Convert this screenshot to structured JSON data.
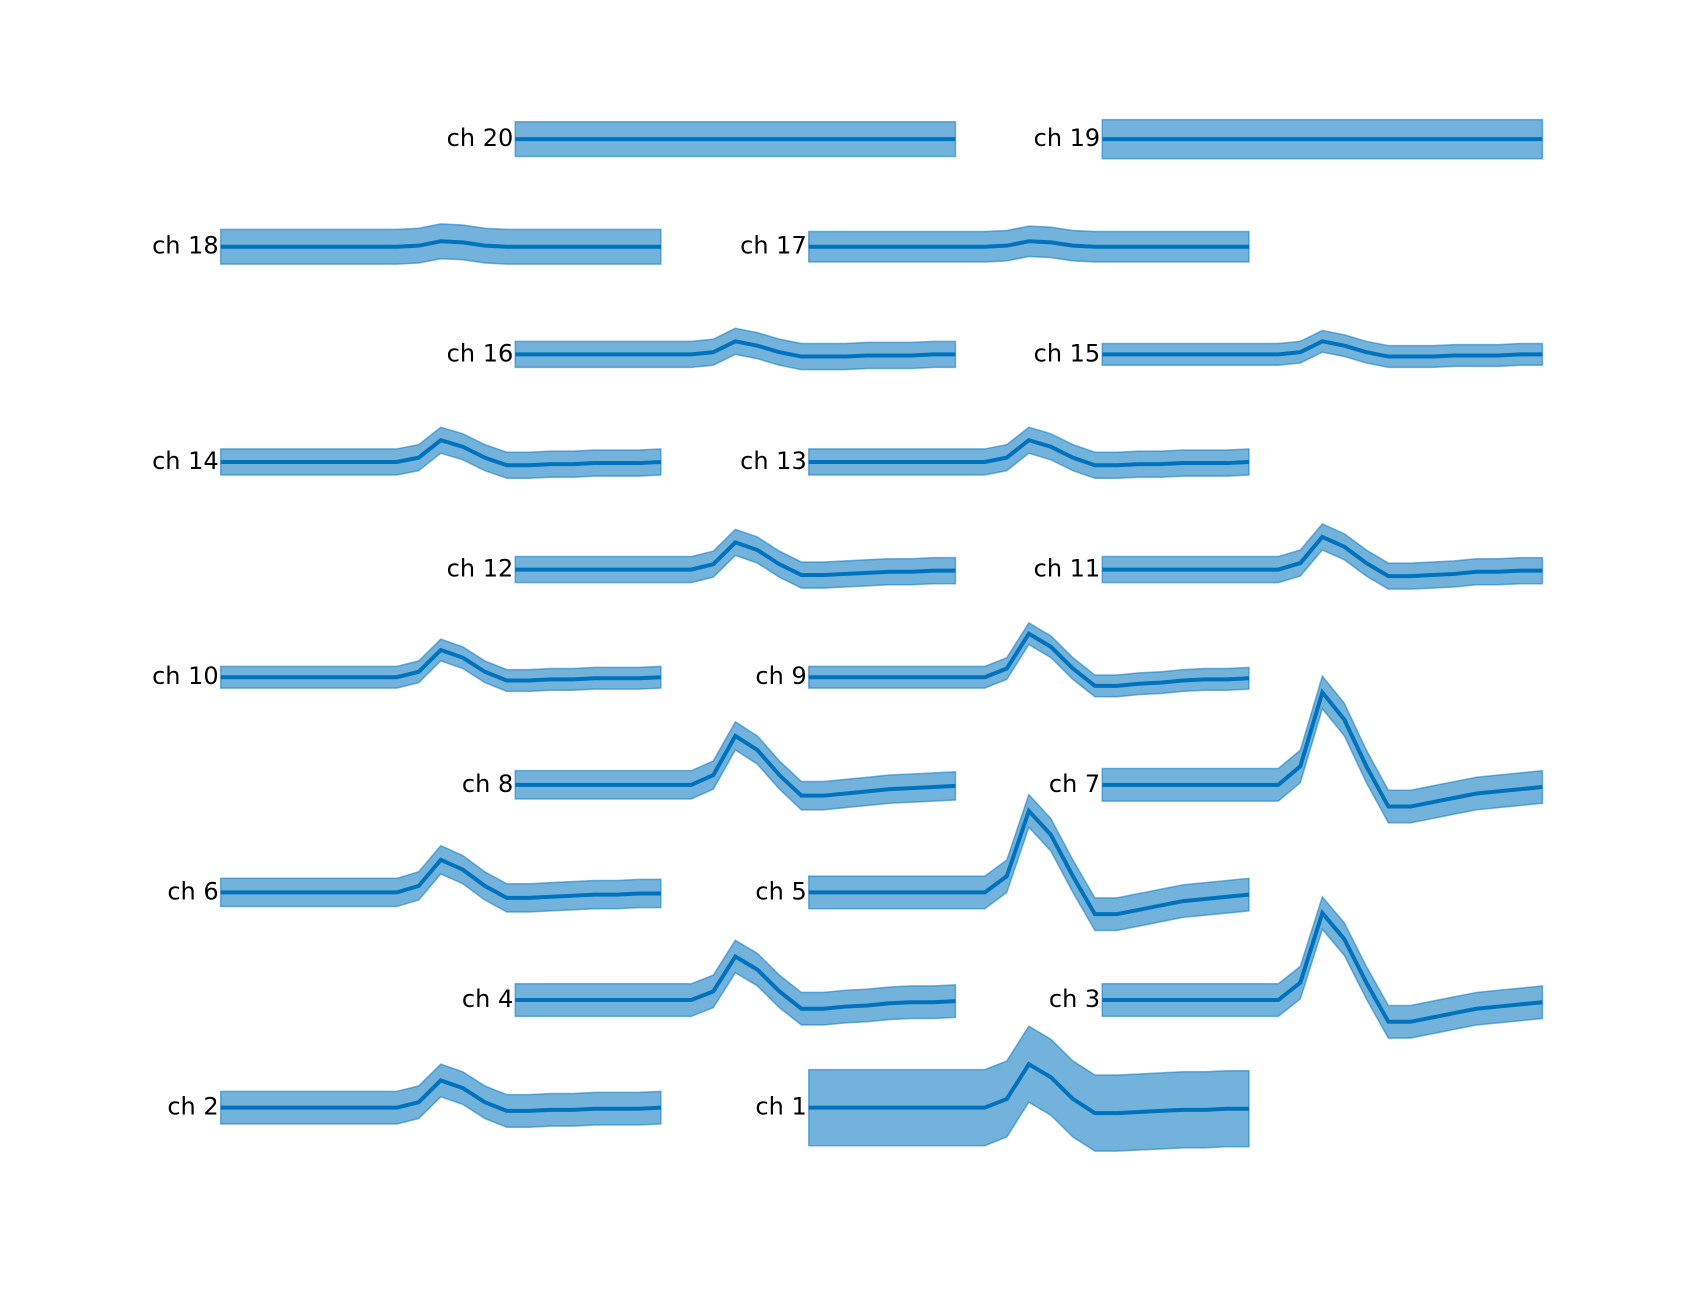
{
  "chart_data": {
    "type": "waveforms",
    "color": "#0072bd",
    "channels": [
      {
        "label": "ch 1",
        "mean": [
          0,
          0,
          0,
          0,
          0,
          0,
          0,
          0,
          0,
          8,
          40,
          28,
          8,
          -5,
          -5,
          -4,
          -3,
          -2,
          -2,
          -1,
          -1
        ],
        "spread": 35
      },
      {
        "label": "ch 2",
        "mean": [
          0,
          0,
          0,
          0,
          0,
          0,
          0,
          0,
          0,
          5,
          25,
          18,
          5,
          -3,
          -3,
          -2,
          -2,
          -1,
          -1,
          -1,
          0
        ],
        "spread": 15
      },
      {
        "label": "ch 3",
        "mean": [
          0,
          0,
          0,
          0,
          0,
          0,
          0,
          0,
          0,
          16,
          80,
          56,
          16,
          -20,
          -20,
          -16,
          -12,
          -8,
          -6,
          -4,
          -2
        ],
        "spread": 15
      },
      {
        "label": "ch 4",
        "mean": [
          0,
          0,
          0,
          0,
          0,
          0,
          0,
          0,
          0,
          8,
          40,
          28,
          8,
          -8,
          -8,
          -6,
          -5,
          -3,
          -2,
          -2,
          -1
        ],
        "spread": 15
      },
      {
        "label": "ch 5",
        "mean": [
          0,
          0,
          0,
          0,
          0,
          0,
          0,
          0,
          0,
          15,
          75,
          53,
          15,
          -20,
          -20,
          -16,
          -12,
          -8,
          -6,
          -4,
          -2
        ],
        "spread": 15
      },
      {
        "label": "ch 6",
        "mean": [
          0,
          0,
          0,
          0,
          0,
          0,
          0,
          0,
          0,
          6,
          30,
          21,
          6,
          -5,
          -5,
          -4,
          -3,
          -2,
          -2,
          -1,
          -1
        ],
        "spread": 13
      },
      {
        "label": "ch 7",
        "mean": [
          0,
          0,
          0,
          0,
          0,
          0,
          0,
          0,
          0,
          17,
          85,
          60,
          17,
          -20,
          -20,
          -16,
          -12,
          -8,
          -6,
          -4,
          -2
        ],
        "spread": 15
      },
      {
        "label": "ch 8",
        "mean": [
          0,
          0,
          0,
          0,
          0,
          0,
          0,
          0,
          0,
          9,
          45,
          32,
          9,
          -10,
          -10,
          -8,
          -6,
          -4,
          -3,
          -2,
          -1
        ],
        "spread": 13
      },
      {
        "label": "ch 9",
        "mean": [
          0,
          0,
          0,
          0,
          0,
          0,
          0,
          0,
          0,
          8,
          40,
          28,
          8,
          -8,
          -8,
          -6,
          -5,
          -3,
          -2,
          -2,
          -1
        ],
        "spread": 10
      },
      {
        "label": "ch 10",
        "mean": [
          0,
          0,
          0,
          0,
          0,
          0,
          0,
          0,
          0,
          5,
          25,
          18,
          5,
          -3,
          -3,
          -2,
          -2,
          -1,
          -1,
          -1,
          0
        ],
        "spread": 10
      },
      {
        "label": "ch 11",
        "mean": [
          0,
          0,
          0,
          0,
          0,
          0,
          0,
          0,
          0,
          6,
          30,
          21,
          6,
          -6,
          -6,
          -5,
          -4,
          -2,
          -2,
          -1,
          -1
        ],
        "spread": 12
      },
      {
        "label": "ch 12",
        "mean": [
          0,
          0,
          0,
          0,
          0,
          0,
          0,
          0,
          0,
          5,
          25,
          18,
          5,
          -5,
          -5,
          -4,
          -3,
          -2,
          -2,
          -1,
          -1
        ],
        "spread": 12
      },
      {
        "label": "ch 13",
        "mean": [
          0,
          0,
          0,
          0,
          0,
          0,
          0,
          0,
          0,
          4,
          20,
          14,
          4,
          -3,
          -3,
          -2,
          -2,
          -1,
          -1,
          -1,
          0
        ],
        "spread": 12
      },
      {
        "label": "ch 14",
        "mean": [
          0,
          0,
          0,
          0,
          0,
          0,
          0,
          0,
          0,
          4,
          20,
          14,
          4,
          -3,
          -3,
          -2,
          -2,
          -1,
          -1,
          -1,
          0
        ],
        "spread": 12
      },
      {
        "label": "ch 15",
        "mean": [
          0,
          0,
          0,
          0,
          0,
          0,
          0,
          0,
          0,
          2,
          12,
          8,
          2,
          -2,
          -2,
          -2,
          -1,
          -1,
          -1,
          0,
          0
        ],
        "spread": 10
      },
      {
        "label": "ch 16",
        "mean": [
          0,
          0,
          0,
          0,
          0,
          0,
          0,
          0,
          0,
          2,
          12,
          8,
          2,
          -2,
          -2,
          -2,
          -1,
          -1,
          -1,
          0,
          0
        ],
        "spread": 12
      },
      {
        "label": "ch 17",
        "mean": [
          0,
          0,
          0,
          0,
          0,
          0,
          0,
          0,
          0,
          1,
          5,
          4,
          1,
          0,
          0,
          0,
          0,
          0,
          0,
          0,
          0
        ],
        "spread": 14
      },
      {
        "label": "ch 18",
        "mean": [
          0,
          0,
          0,
          0,
          0,
          0,
          0,
          0,
          0,
          1,
          5,
          4,
          1,
          0,
          0,
          0,
          0,
          0,
          0,
          0,
          0
        ],
        "spread": 16
      },
      {
        "label": "ch 19",
        "mean": [
          0,
          0,
          0,
          0,
          0,
          0,
          0,
          0,
          0,
          0,
          0,
          0,
          0,
          0,
          0,
          0,
          0,
          0,
          0,
          0,
          0
        ],
        "spread": 18
      },
      {
        "label": "ch 20",
        "mean": [
          0,
          0,
          0,
          0,
          0,
          0,
          0,
          0,
          0,
          0,
          0,
          0,
          0,
          0,
          0,
          0,
          0,
          0,
          0,
          0,
          0
        ],
        "spread": 16
      }
    ]
  }
}
